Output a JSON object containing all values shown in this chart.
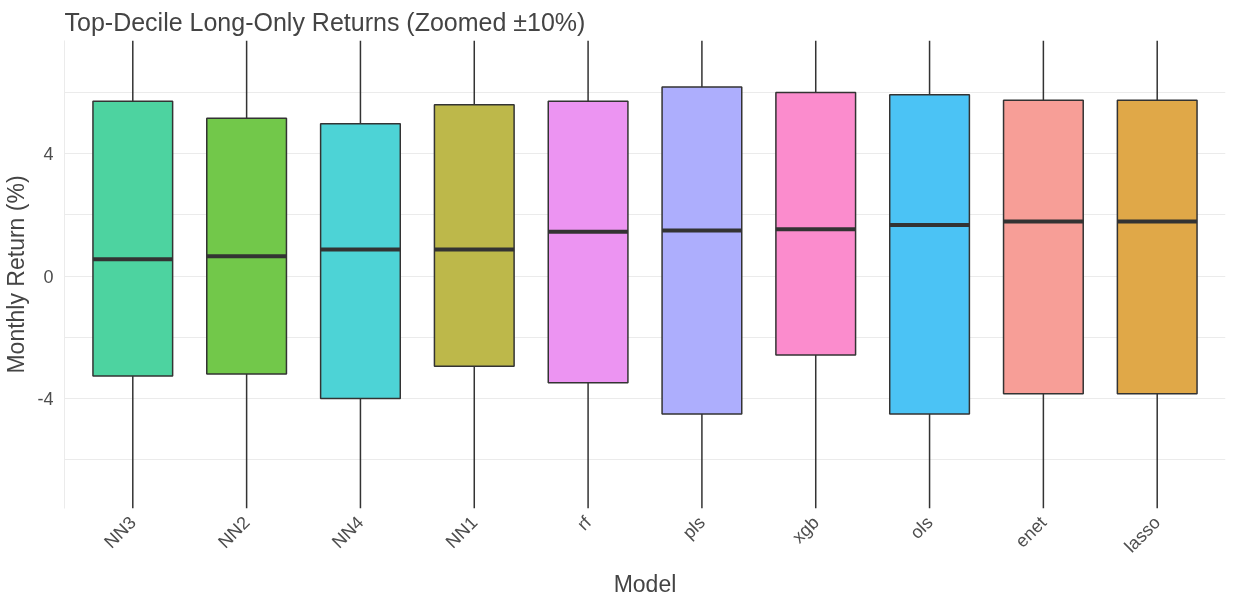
{
  "chart_data": {
    "type": "box",
    "title": "Top-Decile Long-Only Returns (Zoomed ±10%)",
    "xlabel": "Model",
    "ylabel": "Monthly Return (%)",
    "categories": [
      "NN3",
      "NN2",
      "NN4",
      "NN1",
      "rf",
      "pls",
      "xgb",
      "ols",
      "enet",
      "lasso"
    ],
    "colors": [
      "#4dd3a0",
      "#72c84a",
      "#4dd3d6",
      "#bdb84a",
      "#ec94f2",
      "#adaefd",
      "#fb8ccd",
      "#4bc3f5",
      "#f79e97",
      "#e0a848"
    ],
    "boxes": [
      {
        "low": -7.6,
        "q1": -3.27,
        "median": 0.55,
        "q3": 5.71,
        "high": 7.7
      },
      {
        "low": -7.6,
        "q1": -3.2,
        "median": 0.65,
        "q3": 5.16,
        "high": 7.7
      },
      {
        "low": -7.6,
        "q1": -4.0,
        "median": 0.87,
        "q3": 4.98,
        "high": 7.7
      },
      {
        "low": -7.6,
        "q1": -2.95,
        "median": 0.87,
        "q3": 5.6,
        "high": 7.7
      },
      {
        "low": -7.6,
        "q1": -3.49,
        "median": 1.45,
        "q3": 5.71,
        "high": 7.7
      },
      {
        "low": -7.6,
        "q1": -4.51,
        "median": 1.49,
        "q3": 6.18,
        "high": 7.7
      },
      {
        "low": -7.6,
        "q1": -2.58,
        "median": 1.53,
        "q3": 6.0,
        "high": 7.7
      },
      {
        "low": -7.6,
        "q1": -4.51,
        "median": 1.67,
        "q3": 5.93,
        "high": 7.7
      },
      {
        "low": -7.6,
        "q1": -3.85,
        "median": 1.78,
        "q3": 5.75,
        "high": 7.7
      },
      {
        "low": -7.6,
        "q1": -3.85,
        "median": 1.78,
        "q3": 5.75,
        "high": 7.7
      }
    ],
    "yticks": [
      {
        "value": -6,
        "label": null
      },
      -4,
      {
        "value": -2,
        "label": null
      },
      0,
      {
        "value": 2,
        "label": null
      },
      4,
      {
        "value": 6,
        "label": null
      }
    ],
    "ylim": [
      -7.6,
      7.7
    ],
    "grid": "y"
  }
}
